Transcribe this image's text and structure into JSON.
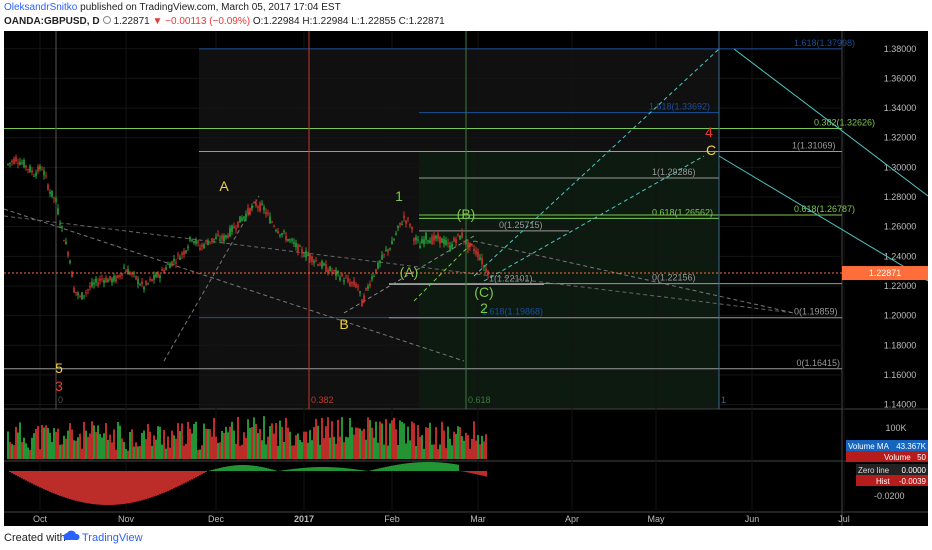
{
  "header": {
    "author": "OleksandrSnitko",
    "published_text": "published on TradingView.com, March 05, 2017 17:04 EST",
    "symbol": "OANDA:GBPUSD, D",
    "last": "1.22871",
    "change": "▼ −0.00113 (−0.09%)",
    "open_label": "O:",
    "open": "1.22984",
    "high_label": "H:",
    "high": "1.22984",
    "low_label": "L:",
    "low": "1.22855",
    "close_label": "C:",
    "close": "1.22871"
  },
  "footer": {
    "created": "Created with",
    "brand": "TradingView"
  },
  "colors": {
    "background": "#000000",
    "up": "#27a53a",
    "down": "#d0312d",
    "fib_blue": "#1b4f9c",
    "fib_green": "#7cc84e",
    "teal": "#4fc6c6",
    "orange_price": "#ff6d3a"
  },
  "chart_data": {
    "type": "candlestick",
    "symbol": "OANDA:GBPUSD",
    "interval": "D",
    "x_ticks": [
      "Oct",
      "Nov",
      "Dec",
      "2017",
      "Feb",
      "Mar",
      "Apr",
      "May",
      "Jun",
      "Jul"
    ],
    "y_ticks": [
      "1.38000",
      "1.36000",
      "1.34000",
      "1.32000",
      "1.30000",
      "1.28000",
      "1.26000",
      "1.24000",
      "1.22000",
      "1.20000",
      "1.18000",
      "1.16000",
      "1.14000"
    ],
    "ylim": [
      1.137,
      1.392
    ],
    "last_price": 1.22871,
    "last_price_label": "1.22871",
    "price_path": [
      [
        0,
        1.302
      ],
      [
        4,
        1.306
      ],
      [
        9,
        1.301
      ],
      [
        13,
        1.296
      ],
      [
        17,
        1.3
      ],
      [
        21,
        1.284
      ],
      [
        24,
        1.277
      ],
      [
        27,
        1.258
      ],
      [
        31,
        1.238
      ],
      [
        33,
        1.218
      ],
      [
        36,
        1.212
      ],
      [
        41,
        1.219
      ],
      [
        47,
        1.225
      ],
      [
        51,
        1.224
      ],
      [
        55,
        1.225
      ],
      [
        58,
        1.232
      ],
      [
        61,
        1.229
      ],
      [
        64,
        1.225
      ],
      [
        68,
        1.219
      ],
      [
        72,
        1.224
      ],
      [
        76,
        1.228
      ],
      [
        80,
        1.234
      ],
      [
        84,
        1.238
      ],
      [
        88,
        1.243
      ],
      [
        92,
        1.253
      ],
      [
        96,
        1.246
      ],
      [
        100,
        1.25
      ],
      [
        104,
        1.252
      ],
      [
        108,
        1.252
      ],
      [
        112,
        1.258
      ],
      [
        116,
        1.264
      ],
      [
        120,
        1.27
      ],
      [
        124,
        1.275
      ],
      [
        128,
        1.272
      ],
      [
        131,
        1.265
      ],
      [
        135,
        1.258
      ],
      [
        139,
        1.253
      ],
      [
        143,
        1.248
      ],
      [
        147,
        1.243
      ],
      [
        151,
        1.24
      ],
      [
        155,
        1.236
      ],
      [
        159,
        1.232
      ],
      [
        163,
        1.229
      ],
      [
        167,
        1.226
      ],
      [
        171,
        1.222
      ],
      [
        175,
        1.22
      ],
      [
        177,
        1.208
      ],
      [
        179,
        1.216
      ],
      [
        182,
        1.226
      ],
      [
        185,
        1.233
      ],
      [
        189,
        1.243
      ],
      [
        192,
        1.248
      ],
      [
        195,
        1.258
      ],
      [
        198,
        1.266
      ],
      [
        201,
        1.262
      ],
      [
        203,
        1.253
      ],
      [
        206,
        1.247
      ],
      [
        209,
        1.253
      ],
      [
        212,
        1.251
      ],
      [
        215,
        1.252
      ],
      [
        218,
        1.25
      ],
      [
        221,
        1.246
      ],
      [
        224,
        1.252
      ],
      [
        227,
        1.254
      ],
      [
        230,
        1.247
      ],
      [
        233,
        1.245
      ],
      [
        236,
        1.24
      ],
      [
        238,
        1.233
      ],
      [
        241,
        1.229
      ]
    ],
    "fib_levels": [
      {
        "label": "1.618(1.37998)",
        "value": 1.37998,
        "color": "#1b4f9c"
      },
      {
        "label": "1.618(1.33692)",
        "value": 1.33692,
        "color": "#1b4f9c"
      },
      {
        "label": "0.382(1.32626)",
        "value": 1.32626,
        "color": "#7cc84e"
      },
      {
        "label": "1(1.31069)",
        "value": 1.31069,
        "color": "#9a9a9a"
      },
      {
        "label": "1(1.29286)",
        "value": 1.29286,
        "color": "#9a9a9a"
      },
      {
        "label": "0.618(1.26562)",
        "value": 1.26562,
        "color": "#7cc84e"
      },
      {
        "label": "0.618(1.26787)",
        "value": 1.26787,
        "color": "#7cc84e"
      },
      {
        "label": "0(1.25715)",
        "value": 1.25715,
        "color": "#9a9a9a"
      },
      {
        "label": "1(1.22101)",
        "value": 1.22101,
        "color": "#9a9a9a"
      },
      {
        "label": "0(1.22156)",
        "value": 1.22156,
        "color": "#9a9a9a"
      },
      {
        "label": "1.618(1.19868)",
        "value": 1.19868,
        "color": "#1b4f9c"
      },
      {
        "label": "0(1.19859)",
        "value": 1.19859,
        "color": "#9a9a9a"
      },
      {
        "label": "0(1.16415)",
        "value": 1.16415,
        "color": "#9a9a9a"
      }
    ],
    "time_fib_labels": [
      "0",
      "0.382",
      "0.618",
      "1"
    ],
    "wave_labels": [
      {
        "text": "5",
        "color": "#f2d23a"
      },
      {
        "text": "3",
        "color": "#e53935"
      },
      {
        "text": "A",
        "color": "#f2d23a"
      },
      {
        "text": "B",
        "color": "#f2d23a"
      },
      {
        "text": "1",
        "color": "#7cc84e"
      },
      {
        "text": "2",
        "color": "#7cc84e"
      },
      {
        "text": "(A)",
        "color": "#7cc84e"
      },
      {
        "text": "(B)",
        "color": "#7cc84e"
      },
      {
        "text": "(C)",
        "color": "#7cc84e"
      },
      {
        "text": "4",
        "color": "#e53935"
      },
      {
        "text": "C",
        "color": "#f2d23a"
      }
    ],
    "volume_axis_label": "100K",
    "volume_ma_label": "Volume MA",
    "volume_ma_value": "43.367K",
    "volume_label": "Volume",
    "volume_value": "50",
    "macd_ticks": [
      "0.0000",
      "-0.0200"
    ],
    "zero_line_label": "Zero line",
    "zero_line_value": "0.0000",
    "hist_label": "Hist",
    "hist_value": "-0.0039"
  }
}
